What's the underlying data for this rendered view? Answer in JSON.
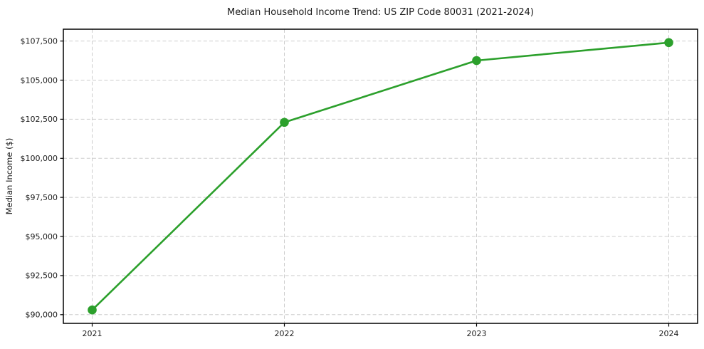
{
  "window": {
    "background": "#ffffff"
  },
  "chart_data": {
    "type": "line",
    "title": "Median Household Income Trend: US ZIP Code 80031 (2021-2024)",
    "xlabel": "",
    "ylabel": "Median Income ($)",
    "x": [
      2021,
      2022,
      2023,
      2024
    ],
    "x_tick_labels": [
      "2021",
      "2022",
      "2023",
      "2024"
    ],
    "series": [
      {
        "name": "Median Household Income",
        "values": [
          90300,
          102300,
          106250,
          107400
        ],
        "color": "#2ca02c",
        "marker": "circle",
        "line_style": "solid"
      }
    ],
    "y_ticks": [
      90000,
      92500,
      95000,
      97500,
      100000,
      102500,
      105000,
      107500
    ],
    "y_tick_labels": [
      "$90,000",
      "$92,500",
      "$95,000",
      "$97,500",
      "$100,000",
      "$102,500",
      "$105,000",
      "$107,500"
    ],
    "xlim": [
      2020.85,
      2024.15
    ],
    "ylim": [
      89445,
      108255
    ],
    "grid": "both",
    "grid_style": "dashed",
    "legend": "none",
    "colors": {
      "line": "#2ca02c",
      "grid": "#cdcdcd",
      "spine": "#000000",
      "text": "#1a1a1a",
      "background": "#ffffff"
    }
  }
}
